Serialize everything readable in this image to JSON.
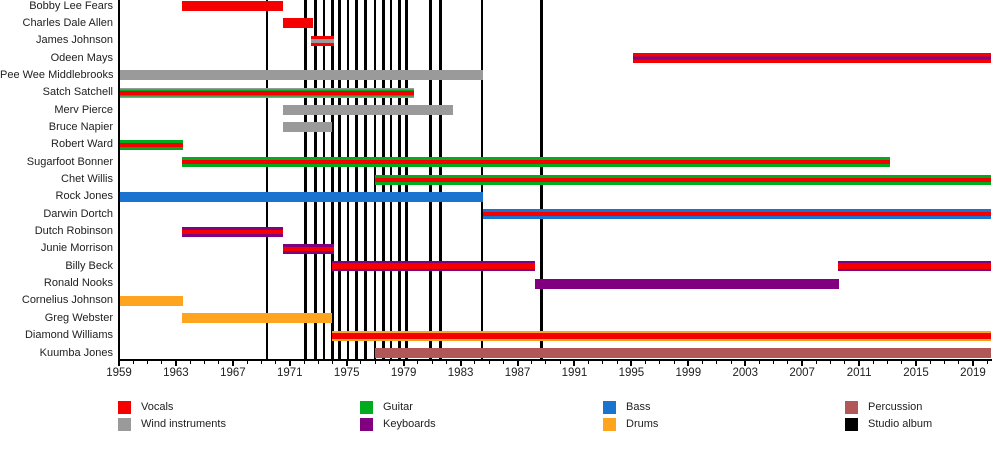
{
  "chart_data": {
    "type": "timeline",
    "description": "Band membership timeline with instrument colors and studio-album release lines",
    "x_axis": {
      "start": 1959,
      "end": 2020.3,
      "major_ticks": [
        1959,
        1963,
        1967,
        1971,
        1975,
        1979,
        1983,
        1987,
        1991,
        1995,
        1999,
        2003,
        2007,
        2011,
        2015,
        2019
      ],
      "minor_tick_every": 1,
      "grid": false
    },
    "palette": {
      "vocals": "#f40000",
      "guitar": "#00ab20",
      "bass": "#1a73cf",
      "percussion": "#b25757",
      "wind": "#9a9a9a",
      "keyboards": "#800080",
      "drums": "#ffa41f",
      "album": "#000000",
      "axis": "#000000",
      "text": "#202122"
    },
    "album_lines": [
      1969.4,
      1972.1,
      1972.8,
      1973.4,
      1974.0,
      1974.5,
      1975.1,
      1975.7,
      1976.3,
      1977.0,
      1977.6,
      1978.1,
      1978.7,
      1979.2,
      1980.9,
      1981.6,
      1984.5,
      1988.7
    ],
    "members": [
      {
        "name": "Bobby Lee Fears",
        "bars": [
          {
            "from": 1963.4,
            "to": 1970.5,
            "stripes": [
              [
                "vocals",
                100
              ]
            ]
          }
        ]
      },
      {
        "name": "Charles Dale Allen",
        "bars": [
          {
            "from": 1970.5,
            "to": 1972.6,
            "stripes": [
              [
                "vocals",
                100
              ]
            ]
          }
        ]
      },
      {
        "name": "James Johnson",
        "bars": [
          {
            "from": 1972.5,
            "to": 1974.1,
            "stripes": [
              [
                "vocals",
                30
              ],
              [
                "wind",
                40
              ],
              [
                "vocals",
                30
              ]
            ]
          }
        ]
      },
      {
        "name": "Odeen Mays",
        "bars": [
          {
            "from": 1995.1,
            "to": 2020.3,
            "stripes": [
              [
                "vocals",
                36
              ],
              [
                "keyboards",
                28
              ],
              [
                "vocals",
                36
              ]
            ]
          }
        ]
      },
      {
        "name": "Pee Wee Middlebrooks",
        "bars": [
          {
            "from": 1959.0,
            "to": 1984.6,
            "stripes": [
              [
                "wind",
                100
              ]
            ]
          }
        ]
      },
      {
        "name": "Satch Satchell",
        "bars": [
          {
            "from": 1959.0,
            "to": 1979.7,
            "stripes": [
              [
                "wind",
                14
              ],
              [
                "guitar",
                18
              ],
              [
                "vocals",
                36
              ],
              [
                "guitar",
                18
              ],
              [
                "wind",
                14
              ]
            ]
          }
        ]
      },
      {
        "name": "Merv Pierce",
        "bars": [
          {
            "from": 1970.5,
            "to": 1982.5,
            "stripes": [
              [
                "wind",
                100
              ]
            ]
          }
        ]
      },
      {
        "name": "Bruce Napier",
        "bars": [
          {
            "from": 1970.5,
            "to": 1974.0,
            "stripes": [
              [
                "wind",
                100
              ]
            ]
          }
        ]
      },
      {
        "name": "Robert Ward",
        "bars": [
          {
            "from": 1959.0,
            "to": 1963.5,
            "stripes": [
              [
                "guitar",
                28
              ],
              [
                "vocals",
                44
              ],
              [
                "guitar",
                28
              ]
            ]
          }
        ]
      },
      {
        "name": "Sugarfoot Bonner",
        "bars": [
          {
            "from": 1963.4,
            "to": 2013.2,
            "stripes": [
              [
                "guitar",
                28
              ],
              [
                "vocals",
                44
              ],
              [
                "guitar",
                28
              ]
            ]
          }
        ]
      },
      {
        "name": "Chet Willis",
        "bars": [
          {
            "from": 1977.0,
            "to": 2020.3,
            "stripes": [
              [
                "guitar",
                28
              ],
              [
                "vocals",
                44
              ],
              [
                "guitar",
                28
              ]
            ]
          }
        ]
      },
      {
        "name": "Rock Jones",
        "bars": [
          {
            "from": 1959.0,
            "to": 1984.6,
            "stripes": [
              [
                "bass",
                100
              ]
            ]
          }
        ]
      },
      {
        "name": "Darwin Dortch",
        "bars": [
          {
            "from": 1984.6,
            "to": 2020.3,
            "stripes": [
              [
                "bass",
                28
              ],
              [
                "vocals",
                44
              ],
              [
                "bass",
                28
              ]
            ]
          }
        ]
      },
      {
        "name": "Dutch Robinson",
        "bars": [
          {
            "from": 1963.4,
            "to": 1970.5,
            "stripes": [
              [
                "keyboards",
                30
              ],
              [
                "vocals",
                40
              ],
              [
                "keyboards",
                30
              ]
            ]
          }
        ]
      },
      {
        "name": "Junie Morrison",
        "bars": [
          {
            "from": 1970.5,
            "to": 1974.1,
            "stripes": [
              [
                "keyboards",
                30
              ],
              [
                "vocals",
                40
              ],
              [
                "keyboards",
                30
              ]
            ]
          }
        ]
      },
      {
        "name": "Billy Beck",
        "bars": [
          {
            "from": 1974.0,
            "to": 1988.2,
            "stripes": [
              [
                "keyboards",
                20
              ],
              [
                "vocals",
                60
              ],
              [
                "keyboards",
                20
              ]
            ]
          },
          {
            "from": 2009.5,
            "to": 2020.3,
            "stripes": [
              [
                "keyboards",
                20
              ],
              [
                "vocals",
                60
              ],
              [
                "keyboards",
                20
              ]
            ]
          }
        ]
      },
      {
        "name": "Ronald Nooks",
        "bars": [
          {
            "from": 1988.2,
            "to": 2009.6,
            "stripes": [
              [
                "keyboards",
                100
              ]
            ]
          }
        ]
      },
      {
        "name": "Cornelius Johnson",
        "bars": [
          {
            "from": 1959.0,
            "to": 1963.5,
            "stripes": [
              [
                "drums",
                100
              ]
            ]
          }
        ]
      },
      {
        "name": "Greg Webster",
        "bars": [
          {
            "from": 1963.4,
            "to": 1974.0,
            "stripes": [
              [
                "drums",
                100
              ]
            ]
          }
        ]
      },
      {
        "name": "Diamond Williams",
        "bars": [
          {
            "from": 1974.0,
            "to": 2020.3,
            "stripes": [
              [
                "drums",
                20
              ],
              [
                "vocals",
                60
              ],
              [
                "drums",
                20
              ]
            ]
          }
        ]
      },
      {
        "name": "Kuumba Jones",
        "bars": [
          {
            "from": 1977.0,
            "to": 2020.3,
            "stripes": [
              [
                "percussion",
                100
              ]
            ]
          }
        ]
      }
    ],
    "legend": {
      "columns": [
        [
          {
            "label": "Vocals",
            "color": "vocals"
          },
          {
            "label": "Wind instruments",
            "color": "wind"
          }
        ],
        [
          {
            "label": "Guitar",
            "color": "guitar"
          },
          {
            "label": "Keyboards",
            "color": "keyboards"
          }
        ],
        [
          {
            "label": "Bass",
            "color": "bass"
          },
          {
            "label": "Drums",
            "color": "drums"
          }
        ],
        [
          {
            "label": "Percussion",
            "color": "percussion"
          },
          {
            "label": "Studio album",
            "color": "album"
          }
        ]
      ]
    }
  }
}
